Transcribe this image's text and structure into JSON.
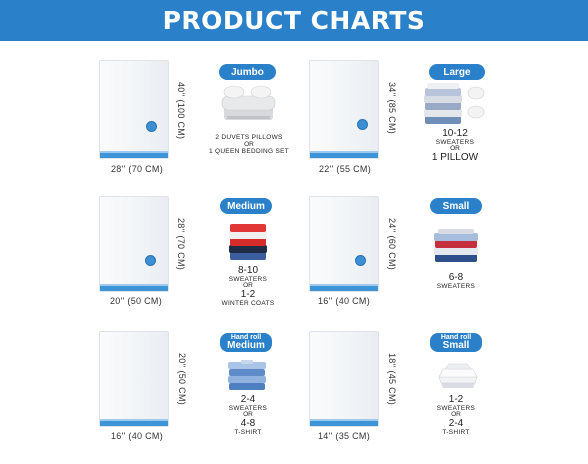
{
  "banner": {
    "title": "PRODUCT CHARTS"
  },
  "items": [
    {
      "badge": "Jumbo",
      "height": "40'' (100 CM)",
      "width": "28'' (70 CM)",
      "lines": [
        "2 DUVETS PILLOWS",
        "OR",
        "1 QUEEN BEDDING SET"
      ]
    },
    {
      "badge": "Large",
      "height": "34'' (85 CM)",
      "width": "22'' (55 CM)",
      "lines": [
        "10-12",
        "SWEATERS",
        "OR",
        "1 PILLOW"
      ]
    },
    {
      "badge": "Medium",
      "height": "28'' (70 CM)",
      "width": "20'' (50 CM)",
      "lines": [
        "8-10",
        "SWEATERS",
        "OR",
        "1-2",
        "WINTER COATS"
      ]
    },
    {
      "badge": "Small",
      "height": "24'' (60 CM)",
      "width": "16'' (40 CM)",
      "lines": [
        "6-8",
        "SWEATERS"
      ]
    },
    {
      "badge_top": "Hand roll",
      "badge": "Medium",
      "height": "20'' (50 CM)",
      "width": "16'' (40 CM)",
      "lines": [
        "2-4",
        "SWEATERS",
        "OR",
        "4-8",
        "T-SHIRT"
      ]
    },
    {
      "badge_top": "Hand roll",
      "badge": "Small",
      "height": "18'' (45 CM)",
      "width": "14'' (35 CM)",
      "lines": [
        "1-2",
        "SWEATERS",
        "OR",
        "2-4",
        "T-SHIRT"
      ]
    }
  ],
  "colors": {
    "brand": "#2a80c9",
    "zipper": "#3d94d6",
    "valve": "#3d8fd3"
  }
}
